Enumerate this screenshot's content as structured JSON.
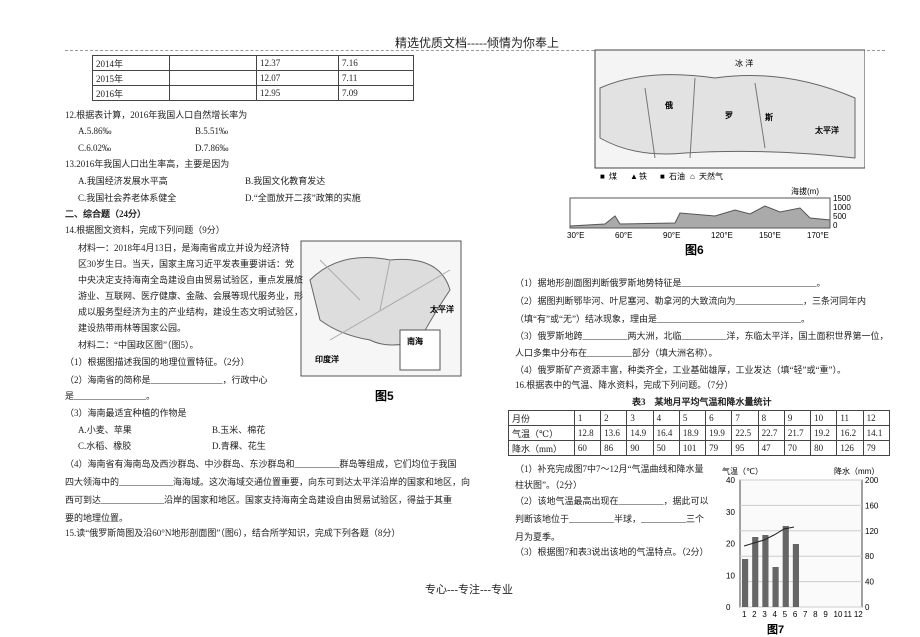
{
  "header": "精选优质文档-----倾情为你奉上",
  "footer": "专心---专注---专业",
  "population_table": {
    "rows": [
      [
        "2014年",
        "12.37",
        "7.16"
      ],
      [
        "2015年",
        "12.07",
        "7.11"
      ],
      [
        "2016年",
        "12.95",
        "7.09"
      ]
    ]
  },
  "q12": {
    "stem": "12.根据表计算，2016年我国人口自然增长率为",
    "options": [
      "A.5.86‰",
      "B.5.51‰",
      "C.6.02‰",
      "D.7.86‰"
    ]
  },
  "q13": {
    "stem": "13.2016年我国人口出生率高，主要是因为",
    "options": [
      "A.我国经济发展水平高",
      "B.我国文化教育发达",
      "C.我国社会养老体系健全",
      "D.“全面放开二孩”政策的实施"
    ]
  },
  "section_title": "二、综合题（24分）",
  "q14": {
    "stem": "14.根据图文资料，完成下列问题（9分）",
    "material1": [
      "材料一：2018年4月13日，是海南省成立并设为经济特",
      "区30岁生日。当天，国家主席习近平发表重要讲话：党",
      "中央决定支持海南全岛建设自由贸易试验区，重点发展旅",
      "游业、互联网、医疗健康、金融、会展等现代服务业，形",
      "成以服务型经济为主的产业结构，建设生态文明试验区，",
      "建设热带雨林等国家公园。"
    ],
    "material2": "材料二：“中国政区图”（图5）。",
    "sub1": "（1）根据图描述我国的地理位置特征。（2分）",
    "sub2": [
      "（2）海南省的简称是________________，行政中心",
      "是________________。"
    ],
    "sub3": {
      "stem": "（3）海南最适宜种植的作物是",
      "options": [
        "A.小麦、苹果",
        "B.玉米、棉花",
        "C.水稻、橡胶",
        "D.青稞、花生"
      ]
    },
    "sub4": [
      "（4）海南省有海南岛及西沙群岛、中沙群岛、东沙群岛和__________群岛等组成，它们均位于我国",
      "四大领海中的____________海海域。这次海域交通位置重要，向东可到达太平洋沿岸的国家和地区，向",
      "西可到达______________沿岸的国家和地区。国家支持海南全岛建设自由贸易试验区，得益于其重",
      "要的地理位置。"
    ]
  },
  "q15": {
    "stem": "15.读“俄罗斯简图及沿60°N地形剖面图”（图6），结合所学知识，完成下列各题（8分）",
    "subs": [
      "（1）据地形剖面图判断俄罗斯地势特征是______________________________。",
      "（2）据图判断鄂毕河、叶尼塞河、勒拿河的大致流向为_______________，三条河同年内",
      "（填“有”或“无”）结冰现象，理由是________________________________。",
      "（3）俄罗斯地跨__________两大洲，北临__________洋，东临太平洋，国土面积世界第一位，",
      "人口多集中分布在__________部分（填大洲名称）。",
      "（4）俄罗斯矿产资源丰富，种类齐全，工业基础雄厚，工业发达（填“轻”或“重”）。"
    ]
  },
  "q16": {
    "stem": "16.根据表中的气温、降水资料，完成下列问题。（7分）",
    "subs": [
      "（1）补充完成图7中7～12月“气温曲线和降水量",
      "柱状图”。（2分）",
      "（2）该地气温最高出现在__________，据此可以",
      "判断该地位于__________半球，__________三个",
      "月为夏季。",
      "（3）根据图7和表3说出该地的气温特点。（2分）"
    ]
  },
  "figure5": {
    "caption": "图5",
    "labels": [
      "太平洋",
      "南海",
      "印度洋"
    ]
  },
  "figure6": {
    "caption": "图6",
    "map_labels": [
      "冰 洋",
      "俄",
      "罗",
      "斯",
      "太平洋"
    ],
    "legend": [
      "煤",
      "铁",
      "石油",
      "天然气"
    ],
    "profile": {
      "y_title": "海拔(m)",
      "yticks": [
        "1500",
        "1000",
        "500",
        "0"
      ],
      "xticks": [
        "30°E",
        "60°E",
        "90°E",
        "120°E",
        "150°E",
        "170°E"
      ]
    }
  },
  "table3": {
    "title": "表3　某地月平均气温和降水量统计",
    "header": [
      "月份",
      "1",
      "2",
      "3",
      "4",
      "5",
      "6",
      "7",
      "8",
      "9",
      "10",
      "11",
      "12"
    ],
    "rows": [
      [
        "气温（℃）",
        "12.8",
        "13.6",
        "14.9",
        "16.4",
        "18.9",
        "19.9",
        "22.5",
        "22.7",
        "21.7",
        "19.2",
        "16.2",
        "14.1"
      ],
      [
        "降水（mm）",
        "60",
        "86",
        "90",
        "50",
        "101",
        "79",
        "95",
        "47",
        "70",
        "80",
        "126",
        "79"
      ]
    ]
  },
  "figure7": {
    "caption": "图7",
    "y_left_title": "气温（℃）",
    "y_right_title": "降水（mm）",
    "yticks_left": [
      "40",
      "30",
      "20",
      "10",
      "0"
    ],
    "yticks_right": [
      "200",
      "160",
      "120",
      "80",
      "40",
      "0"
    ],
    "xticks": [
      "1",
      "2",
      "3",
      "4",
      "5",
      "6",
      "7",
      "8",
      "9",
      "10",
      "11",
      "12"
    ]
  }
}
